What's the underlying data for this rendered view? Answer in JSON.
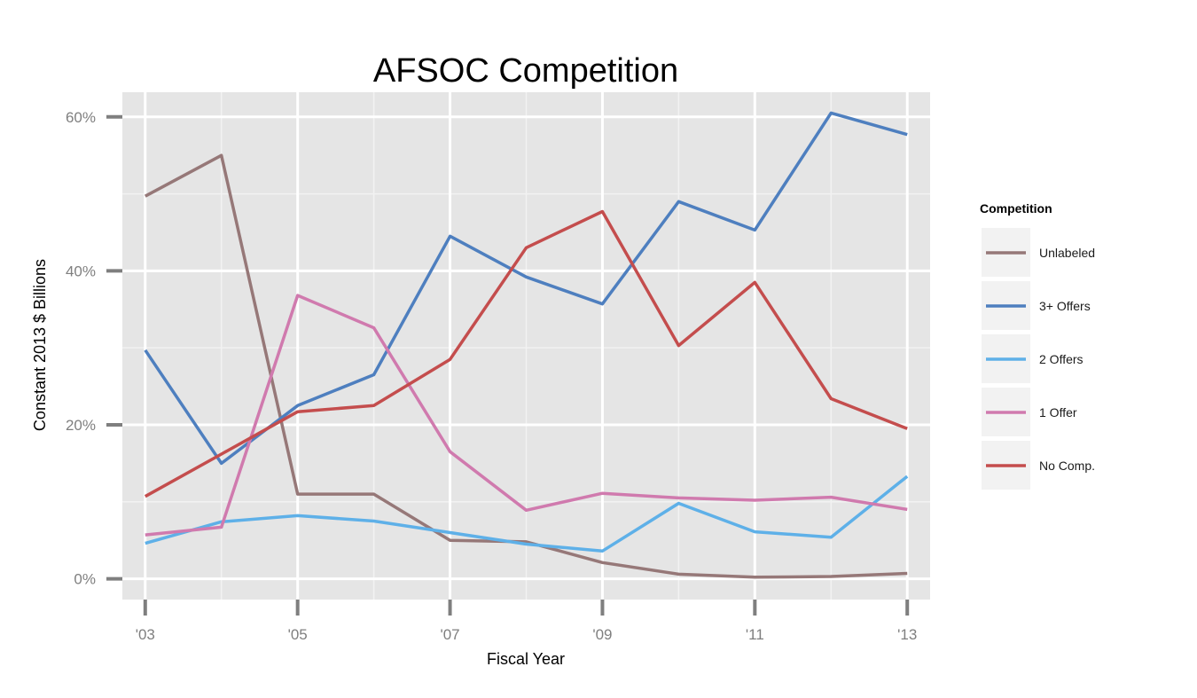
{
  "chart_data": {
    "type": "line",
    "title": "AFSOC Competition",
    "xlabel": "Fiscal Year",
    "ylabel": "Constant 2013 $ Billions",
    "x": [
      2003,
      2004,
      2005,
      2006,
      2007,
      2008,
      2009,
      2010,
      2011,
      2012,
      2013
    ],
    "x_tick_values": [
      2003,
      2005,
      2007,
      2009,
      2011,
      2013
    ],
    "x_tick_labels": [
      "'03",
      "'05",
      "'07",
      "'09",
      "'11",
      "'13"
    ],
    "y_tick_values": [
      0,
      20,
      40,
      60
    ],
    "y_tick_labels": [
      "0%",
      "20%",
      "40%",
      "60%"
    ],
    "xlim": [
      2002.7,
      2013.3
    ],
    "ylim": [
      -2.7,
      63.2
    ],
    "grid": true,
    "legend_title": "Competition",
    "legend_position": "right",
    "series": [
      {
        "name": "Unlabeled",
        "color": "#967878",
        "values": [
          49.7,
          55.0,
          11.0,
          11.0,
          5.0,
          4.8,
          2.1,
          0.6,
          0.2,
          0.3,
          0.7
        ]
      },
      {
        "name": "3+ Offers",
        "color": "#4e7fbf",
        "values": [
          29.7,
          15.0,
          22.5,
          26.5,
          44.5,
          39.2,
          35.7,
          49.0,
          45.3,
          60.5,
          57.7
        ]
      },
      {
        "name": "2 Offers",
        "color": "#5eb0e8",
        "values": [
          4.6,
          7.4,
          8.2,
          7.5,
          6.0,
          4.5,
          3.6,
          9.8,
          6.1,
          5.4,
          13.3
        ]
      },
      {
        "name": "1 Offer",
        "color": "#d07aae",
        "values": [
          5.7,
          6.7,
          36.8,
          32.6,
          16.5,
          8.9,
          11.1,
          10.5,
          10.2,
          10.6,
          9.0
        ]
      },
      {
        "name": "No Comp.",
        "color": "#c44d4d",
        "values": [
          10.7,
          16.2,
          21.7,
          22.5,
          28.5,
          43.0,
          47.7,
          30.3,
          38.5,
          23.4,
          19.5
        ]
      }
    ]
  }
}
